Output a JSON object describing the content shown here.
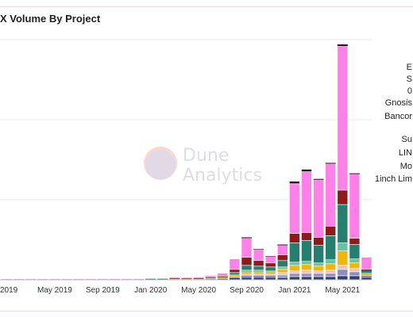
{
  "title": "X Volume By Project",
  "watermark": {
    "line1": "Dune",
    "line2": "Analytics"
  },
  "colors": {
    "pink": "#ff80e8",
    "darkred": "#8e1a1a",
    "teal": "#257f6e",
    "mint": "#5fc7a8",
    "yellow": "#f2b705",
    "lightpink": "#f6bfb2",
    "purple": "#8e8fbf",
    "navy": "#2f3e7a",
    "black": "#111111",
    "gridline": "#e9e9e9",
    "watermark_salmon": "#f6bfb2",
    "watermark_lavender": "#c4c2e0"
  },
  "chart_data": {
    "type": "bar",
    "stacked": true,
    "title": "X Volume By Project",
    "xlabel": "",
    "ylabel": "",
    "x_tick_labels": [
      "2019",
      "May 2019",
      "Sep 2019",
      "Jan 2020",
      "May 2020",
      "Sep 2020",
      "Jan 2021",
      "May 2021"
    ],
    "categories": [
      "2019-01",
      "2019-02",
      "2019-03",
      "2019-04",
      "2019-05",
      "2019-06",
      "2019-07",
      "2019-08",
      "2019-09",
      "2019-10",
      "2019-11",
      "2019-12",
      "2020-01",
      "2020-02",
      "2020-03",
      "2020-04",
      "2020-05",
      "2020-06",
      "2020-07",
      "2020-08",
      "2020-09",
      "2020-10",
      "2020-11",
      "2020-12",
      "2021-01",
      "2021-02",
      "2021-03",
      "2021-04",
      "2021-05",
      "2021-06",
      "2021-07"
    ],
    "ylim": [
      0,
      300
    ],
    "grid": true,
    "legend_placement": "right",
    "series": [
      {
        "name": "",
        "color": "navy",
        "values": [
          0.3,
          0.3,
          0.3,
          0.3,
          0.3,
          0.3,
          0.3,
          0.3,
          0.3,
          0.3,
          0.3,
          0.3,
          0.4,
          0.4,
          0.5,
          0.4,
          0.5,
          0.7,
          1,
          2,
          3,
          3,
          3,
          3,
          4,
          4,
          4,
          4,
          5,
          5,
          3
        ]
      },
      {
        "name": "",
        "color": "purple",
        "values": [
          0,
          0,
          0,
          0,
          0,
          0,
          0,
          0,
          0,
          0,
          0,
          0,
          0.2,
          0.2,
          0.3,
          0.3,
          0.3,
          0.5,
          0.5,
          1,
          2,
          2,
          2,
          3,
          4,
          4,
          4,
          4,
          8,
          5,
          2
        ]
      },
      {
        "name": "",
        "color": "lightpink",
        "values": [
          0,
          0,
          0,
          0,
          0,
          0,
          0,
          0,
          0,
          0,
          0,
          0,
          0,
          0,
          0.2,
          0.2,
          0.3,
          0.4,
          0.5,
          1,
          2,
          2,
          2,
          3,
          3,
          4,
          3,
          4,
          5,
          4,
          1
        ]
      },
      {
        "name": "",
        "color": "yellow",
        "values": [
          0.2,
          0.2,
          0.2,
          0.2,
          0.2,
          0.2,
          0.2,
          0.2,
          0.2,
          0.2,
          0.2,
          0.2,
          0.3,
          0.3,
          0.4,
          0.4,
          0.4,
          0.6,
          0.8,
          2,
          3,
          3,
          3,
          4,
          7,
          7,
          6,
          8,
          18,
          7,
          2
        ]
      },
      {
        "name": "",
        "color": "mint",
        "values": [
          0,
          0,
          0,
          0,
          0,
          0,
          0,
          0,
          0,
          0,
          0,
          0,
          0,
          0,
          0,
          0,
          0,
          0,
          0,
          0,
          2,
          2,
          1,
          3,
          4,
          4,
          4,
          5,
          10,
          5,
          1
        ]
      },
      {
        "name": "",
        "color": "teal",
        "values": [
          0.1,
          0.1,
          0.1,
          0.1,
          0.1,
          0.1,
          0.1,
          0.1,
          0.1,
          0.1,
          0.1,
          0.1,
          0.2,
          0.2,
          0.3,
          0.3,
          0.3,
          0.5,
          0.8,
          3,
          6,
          5,
          5,
          8,
          24,
          26,
          22,
          30,
          48,
          18,
          2
        ]
      },
      {
        "name": "",
        "color": "darkred",
        "values": [
          0,
          0,
          0,
          0,
          0,
          0,
          0,
          0,
          0,
          0,
          0,
          0,
          0,
          0,
          0.2,
          0.2,
          0.2,
          0.5,
          1,
          4,
          10,
          7,
          5,
          7,
          12,
          10,
          10,
          12,
          18,
          8,
          2
        ]
      },
      {
        "name": "",
        "color": "pink",
        "values": [
          0.2,
          0.2,
          0.2,
          0.2,
          0.2,
          0.2,
          0.2,
          0.3,
          0.3,
          0.3,
          0.3,
          0.3,
          0.5,
          0.6,
          0.8,
          0.7,
          0.8,
          1.5,
          3.5,
          13,
          24,
          14,
          8,
          12,
          62,
          76,
          72,
          78,
          180,
          80,
          15
        ]
      },
      {
        "name": "",
        "color": "black",
        "values": [
          0,
          0,
          0,
          0,
          0,
          0,
          0,
          0,
          0,
          0,
          0,
          0,
          0,
          0,
          0,
          0,
          0,
          0,
          0,
          0,
          1,
          0.5,
          0.5,
          1,
          3,
          3,
          1,
          1,
          2,
          1,
          0
        ]
      }
    ],
    "legend_entries": [
      "Su",
      "LIN",
      "Mo",
      "1inch Lim",
      "Gnosis",
      "Bancor",
      "0",
      "S",
      "E"
    ]
  }
}
